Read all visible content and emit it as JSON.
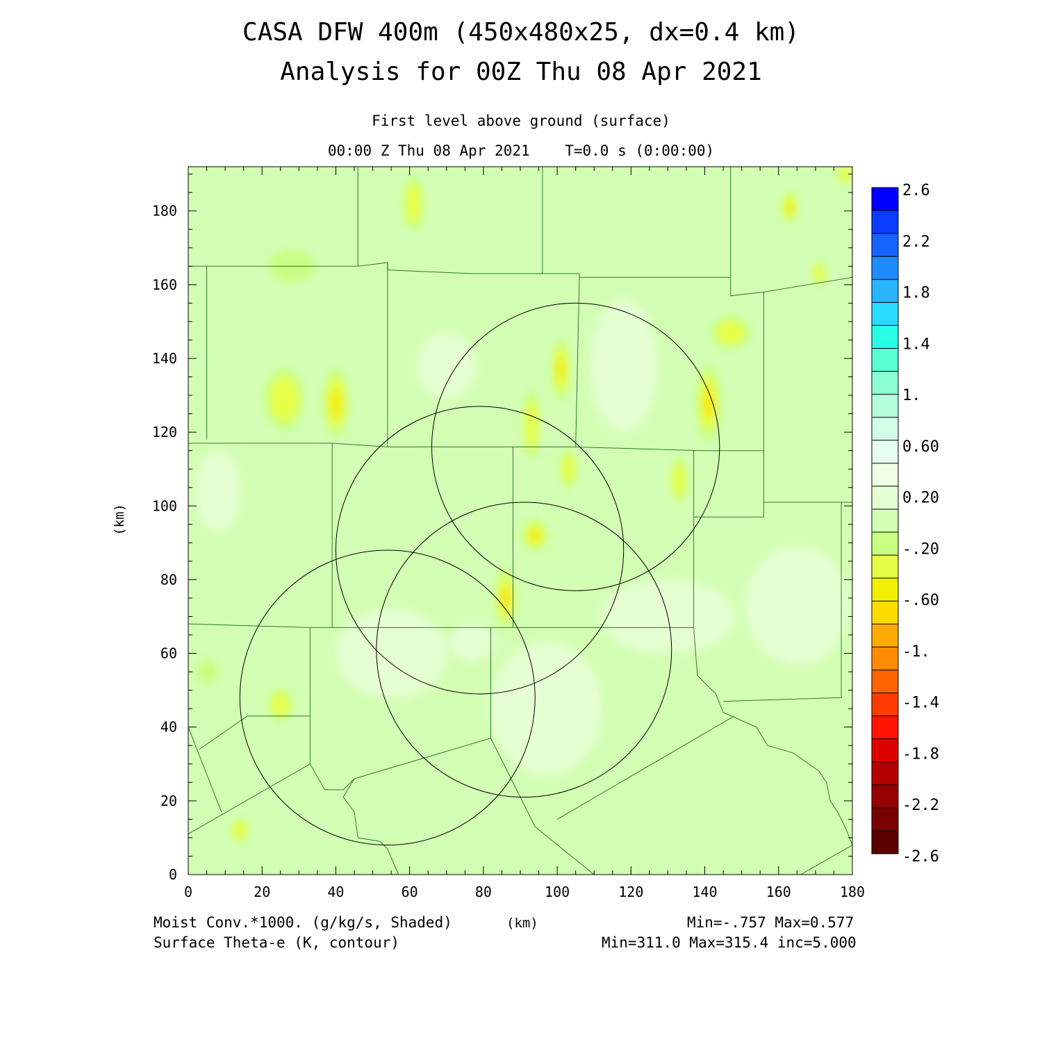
{
  "header": {
    "title_line1": "CASA DFW 400m (450x480x25, dx=0.4 km)",
    "title_line2": "Analysis for 00Z Thu 08 Apr 2021",
    "level": "First level above ground (surface)",
    "time": "00:00 Z Thu 08 Apr 2021    T=0.0 s (0:00:00)"
  },
  "axes": {
    "x_ticks": [
      "0",
      "20",
      "40",
      "60",
      "80",
      "100",
      "120",
      "140",
      "160",
      "180"
    ],
    "y_ticks": [
      "0",
      "20",
      "40",
      "60",
      "80",
      "100",
      "120",
      "140",
      "160",
      "180"
    ],
    "x_unit": "(km)",
    "y_unit": "(km)",
    "xlim": [
      0,
      180
    ],
    "ylim": [
      0,
      192
    ]
  },
  "colorbar": {
    "labels": [
      "2.6",
      "2.2",
      "1.8",
      "1.4",
      "1.",
      "0.60",
      "0.20",
      "-.20",
      "-.60",
      "-1.",
      "-1.4",
      "-1.8",
      "-2.2",
      "-2.6"
    ],
    "colors": [
      "#0000ff",
      "#0a3cff",
      "#1464ff",
      "#1e8cff",
      "#28b4ff",
      "#28dcff",
      "#28ffe6",
      "#5affd2",
      "#8cffd2",
      "#b4ffdc",
      "#d2ffe6",
      "#e6fff0",
      "#f0ffe6",
      "#e6ffd2",
      "#d2ffb4",
      "#c8ff82",
      "#e6ff46",
      "#f0f000",
      "#ffdc00",
      "#ffaa00",
      "#ff8c00",
      "#ff6400",
      "#ff3c00",
      "#ff1400",
      "#dc0000",
      "#b40000",
      "#960000",
      "#780000",
      "#5a0000"
    ]
  },
  "footer": {
    "shaded_field": "Moist Conv.*1000. (g/kg/s, Shaded)",
    "x_unit": "(km)",
    "shaded_range": "Min=-.757 Max=0.577",
    "contour_field": "Surface Theta-e (K, contour)",
    "contour_range": "Min=311.0 Max=315.4 inc=5.000"
  },
  "map": {
    "radar_rings_km": [
      {
        "cx": 105,
        "cy": 116,
        "r": 39
      },
      {
        "cx": 79,
        "cy": 88,
        "r": 39
      },
      {
        "cx": 91,
        "cy": 61,
        "r": 40
      },
      {
        "cx": 54,
        "cy": 48,
        "r": 40
      }
    ],
    "county_lines_km": [
      [
        [
          0,
          165
        ],
        [
          46,
          165
        ],
        [
          54,
          166
        ],
        [
          54,
          164
        ],
        [
          77,
          163
        ],
        [
          106,
          163
        ],
        [
          106,
          162
        ],
        [
          147,
          162
        ],
        [
          147,
          186
        ],
        [
          147,
          192
        ]
      ],
      [
        [
          46,
          192
        ],
        [
          46,
          165
        ]
      ],
      [
        [
          96,
          192
        ],
        [
          96,
          163
        ]
      ],
      [
        [
          5,
          165
        ],
        [
          5,
          118
        ]
      ],
      [
        [
          0,
          117
        ],
        [
          39,
          117
        ],
        [
          54,
          116
        ],
        [
          88,
          116
        ],
        [
          105,
          116
        ],
        [
          139,
          115
        ],
        [
          156,
          115
        ]
      ],
      [
        [
          54,
          166
        ],
        [
          54,
          116
        ]
      ],
      [
        [
          106,
          162
        ],
        [
          105,
          116
        ]
      ],
      [
        [
          147,
          162
        ],
        [
          147,
          157
        ],
        [
          156,
          158
        ],
        [
          180,
          162
        ]
      ],
      [
        [
          156,
          158
        ],
        [
          156,
          101
        ],
        [
          180,
          101
        ]
      ],
      [
        [
          39,
          117
        ],
        [
          39,
          67
        ],
        [
          88,
          67
        ]
      ],
      [
        [
          88,
          116
        ],
        [
          88,
          67
        ],
        [
          137,
          67
        ],
        [
          137,
          115
        ]
      ],
      [
        [
          137,
          97
        ],
        [
          156,
          97
        ],
        [
          156,
          101
        ]
      ],
      [
        [
          0,
          68
        ],
        [
          33,
          67
        ],
        [
          39,
          67
        ]
      ],
      [
        [
          33,
          67
        ],
        [
          33,
          30
        ],
        [
          37,
          23
        ],
        [
          42,
          23
        ],
        [
          45,
          26
        ],
        [
          82,
          37
        ],
        [
          94,
          13
        ],
        [
          110,
          0
        ]
      ],
      [
        [
          82,
          67
        ],
        [
          82,
          37
        ]
      ],
      [
        [
          0,
          40
        ],
        [
          9,
          17
        ]
      ],
      [
        [
          0,
          11
        ],
        [
          33,
          30
        ]
      ],
      [
        [
          16,
          43
        ],
        [
          33,
          43
        ]
      ],
      [
        [
          3,
          34
        ],
        [
          16,
          43
        ]
      ],
      [
        [
          45,
          26
        ],
        [
          42,
          21
        ],
        [
          45,
          17
        ],
        [
          46,
          10
        ],
        [
          52,
          9
        ],
        [
          54,
          7
        ],
        [
          57,
          0
        ]
      ],
      [
        [
          100,
          15
        ],
        [
          148,
          43
        ]
      ],
      [
        [
          137,
          67
        ],
        [
          138,
          54
        ],
        [
          143,
          49
        ],
        [
          145,
          44
        ],
        [
          154,
          40
        ],
        [
          157,
          35
        ],
        [
          164,
          33
        ],
        [
          171,
          28
        ],
        [
          173,
          25
        ],
        [
          174,
          20
        ],
        [
          176,
          17
        ],
        [
          178,
          13
        ],
        [
          180,
          8
        ]
      ],
      [
        [
          145,
          47
        ],
        [
          177,
          48
        ],
        [
          177,
          101
        ]
      ],
      [
        [
          166,
          0
        ],
        [
          180,
          8
        ]
      ]
    ],
    "hot_spots_km": [
      {
        "x": 40,
        "y": 128,
        "rx": 3.2,
        "ry": 9,
        "level": 2
      },
      {
        "x": 26,
        "y": 129,
        "rx": 5,
        "ry": 8,
        "level": 1
      },
      {
        "x": 101,
        "y": 137,
        "rx": 2.2,
        "ry": 8,
        "level": 2
      },
      {
        "x": 93,
        "y": 122,
        "rx": 2,
        "ry": 9,
        "level": 1
      },
      {
        "x": 141,
        "y": 128,
        "rx": 3,
        "ry": 10,
        "level": 3
      },
      {
        "x": 147,
        "y": 147,
        "rx": 5,
        "ry": 4,
        "level": 1
      },
      {
        "x": 86,
        "y": 75,
        "rx": 2.5,
        "ry": 8,
        "level": 3
      },
      {
        "x": 94,
        "y": 92,
        "rx": 3.2,
        "ry": 4,
        "level": 2
      },
      {
        "x": 61,
        "y": 182,
        "rx": 2.5,
        "ry": 7,
        "level": 1
      },
      {
        "x": 163,
        "y": 181,
        "rx": 2,
        "ry": 4,
        "level": 2
      },
      {
        "x": 178,
        "y": 190,
        "rx": 2,
        "ry": 2.5,
        "level": 1
      },
      {
        "x": 25,
        "y": 46,
        "rx": 3,
        "ry": 4,
        "level": 1
      },
      {
        "x": 14,
        "y": 12,
        "rx": 2.2,
        "ry": 3,
        "level": 1
      },
      {
        "x": 103,
        "y": 110,
        "rx": 2,
        "ry": 5,
        "level": 1
      },
      {
        "x": 133,
        "y": 107,
        "rx": 2,
        "ry": 6,
        "level": 1
      },
      {
        "x": 171,
        "y": 163,
        "rx": 1.6,
        "ry": 3,
        "level": 1
      },
      {
        "x": 5,
        "y": 55,
        "rx": 2.5,
        "ry": 3,
        "level": 0
      },
      {
        "x": 28,
        "y": 165,
        "rx": 6,
        "ry": 4,
        "level": 0
      }
    ],
    "cool_spots_km": [
      {
        "x": 55,
        "y": 60,
        "rx": 15,
        "ry": 12
      },
      {
        "x": 97,
        "y": 45,
        "rx": 15,
        "ry": 18
      },
      {
        "x": 130,
        "y": 70,
        "rx": 18,
        "ry": 10
      },
      {
        "x": 165,
        "y": 73,
        "rx": 14,
        "ry": 16
      },
      {
        "x": 118,
        "y": 138,
        "rx": 9,
        "ry": 18
      },
      {
        "x": 8,
        "y": 104,
        "rx": 6,
        "ry": 11
      },
      {
        "x": 77,
        "y": 63,
        "rx": 6,
        "ry": 5
      },
      {
        "x": 70,
        "y": 138,
        "rx": 8,
        "ry": 9
      }
    ]
  }
}
